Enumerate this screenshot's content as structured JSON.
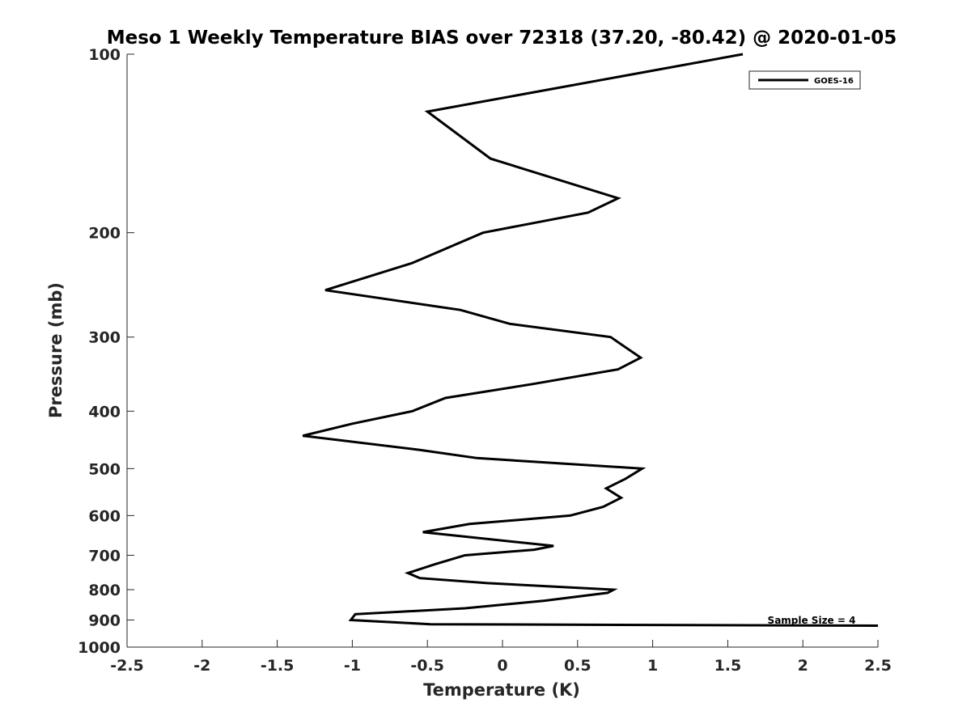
{
  "chart_data": {
    "type": "line",
    "title": "Meso 1 Weekly Temperature BIAS over 72318 (37.20, -80.42) @ 2020-01-05",
    "xlabel": "Temperature (K)",
    "ylabel": "Pressure (mb)",
    "xlim": [
      -2.5,
      2.5
    ],
    "ylim": [
      100,
      1000
    ],
    "y_scale": "log",
    "y_reversed": true,
    "x_ticks": [
      "-2.5",
      "-2",
      "-1.5",
      "-1",
      "-0.5",
      "0",
      "0.5",
      "1",
      "1.5",
      "2",
      "2.5"
    ],
    "x_tick_values": [
      -2.5,
      -2,
      -1.5,
      -1,
      -0.5,
      0,
      0.5,
      1,
      1.5,
      2,
      2.5
    ],
    "y_ticks": [
      "100",
      "200",
      "300",
      "400",
      "500",
      "600",
      "700",
      "800",
      "900",
      "1000"
    ],
    "y_tick_values": [
      100,
      200,
      300,
      400,
      500,
      600,
      700,
      800,
      900,
      1000
    ],
    "grid": false,
    "legend_position": "top-right",
    "annotation": "Sample Size = 4",
    "series": [
      {
        "name": "GOES-16",
        "color": "#000000",
        "points": [
          {
            "p": 100,
            "t": 1.6
          },
          {
            "p": 125,
            "t": -0.5
          },
          {
            "p": 150,
            "t": -0.08
          },
          {
            "p": 175,
            "t": 0.77
          },
          {
            "p": 185,
            "t": 0.57
          },
          {
            "p": 200,
            "t": -0.13
          },
          {
            "p": 225,
            "t": -0.6
          },
          {
            "p": 250,
            "t": -1.18
          },
          {
            "p": 270,
            "t": -0.28
          },
          {
            "p": 285,
            "t": 0.05
          },
          {
            "p": 300,
            "t": 0.72
          },
          {
            "p": 325,
            "t": 0.92
          },
          {
            "p": 340,
            "t": 0.77
          },
          {
            "p": 360,
            "t": 0.2
          },
          {
            "p": 380,
            "t": -0.38
          },
          {
            "p": 400,
            "t": -0.6
          },
          {
            "p": 420,
            "t": -1.0
          },
          {
            "p": 440,
            "t": -1.33
          },
          {
            "p": 465,
            "t": -0.55
          },
          {
            "p": 480,
            "t": -0.17
          },
          {
            "p": 500,
            "t": 0.93
          },
          {
            "p": 520,
            "t": 0.82
          },
          {
            "p": 540,
            "t": 0.69
          },
          {
            "p": 560,
            "t": 0.79
          },
          {
            "p": 580,
            "t": 0.67
          },
          {
            "p": 600,
            "t": 0.45
          },
          {
            "p": 620,
            "t": -0.22
          },
          {
            "p": 640,
            "t": -0.53
          },
          {
            "p": 675,
            "t": 0.34
          },
          {
            "p": 685,
            "t": 0.21
          },
          {
            "p": 700,
            "t": -0.25
          },
          {
            "p": 725,
            "t": -0.45
          },
          {
            "p": 750,
            "t": -0.63
          },
          {
            "p": 765,
            "t": -0.55
          },
          {
            "p": 780,
            "t": -0.1
          },
          {
            "p": 800,
            "t": 0.74
          },
          {
            "p": 810,
            "t": 0.7
          },
          {
            "p": 835,
            "t": 0.28
          },
          {
            "p": 860,
            "t": -0.25
          },
          {
            "p": 880,
            "t": -0.98
          },
          {
            "p": 900,
            "t": -1.01
          },
          {
            "p": 915,
            "t": -0.48
          },
          {
            "p": 920,
            "t": 2.5
          }
        ]
      }
    ]
  }
}
